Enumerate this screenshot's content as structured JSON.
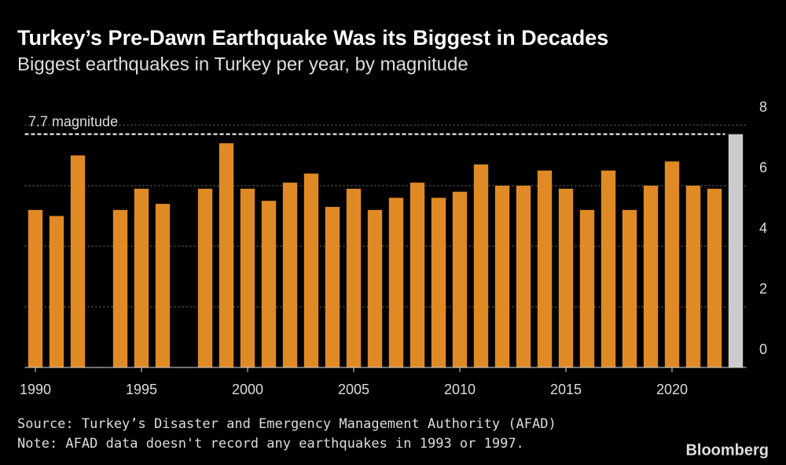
{
  "chart_data": {
    "type": "bar",
    "title": "Turkey’s Pre-Dawn Earthquake Was its Biggest in Decades",
    "subtitle": "Biggest earthquakes in Turkey per year, by magnitude",
    "x": [
      1990,
      1991,
      1992,
      1993,
      1994,
      1995,
      1996,
      1997,
      1998,
      1999,
      2000,
      2001,
      2002,
      2003,
      2004,
      2005,
      2006,
      2007,
      2008,
      2009,
      2010,
      2011,
      2012,
      2013,
      2014,
      2015,
      2016,
      2017,
      2018,
      2019,
      2020,
      2021,
      2022,
      2023
    ],
    "values": [
      5.2,
      5.0,
      7.0,
      null,
      5.2,
      5.9,
      5.4,
      null,
      5.9,
      7.4,
      5.9,
      5.5,
      6.1,
      6.4,
      5.3,
      5.9,
      5.2,
      5.6,
      6.1,
      5.6,
      5.8,
      6.7,
      6.0,
      6.0,
      6.5,
      5.9,
      5.2,
      6.5,
      5.2,
      6.0,
      6.8,
      6.0,
      5.9,
      7.7
    ],
    "colors": [
      "#e08a25",
      "#e08a25",
      "#e08a25",
      "#e08a25",
      "#e08a25",
      "#e08a25",
      "#e08a25",
      "#e08a25",
      "#e08a25",
      "#e08a25",
      "#e08a25",
      "#e08a25",
      "#e08a25",
      "#e08a25",
      "#e08a25",
      "#e08a25",
      "#e08a25",
      "#e08a25",
      "#e08a25",
      "#e08a25",
      "#e08a25",
      "#e08a25",
      "#e08a25",
      "#e08a25",
      "#e08a25",
      "#e08a25",
      "#e08a25",
      "#e08a25",
      "#e08a25",
      "#e08a25",
      "#e08a25",
      "#e08a25",
      "#e08a25",
      "#cccccc"
    ],
    "xlim": [
      1989.5,
      2023.5
    ],
    "xticks": [
      1990,
      1995,
      2000,
      2005,
      2010,
      2015,
      2020
    ],
    "ylim": [
      0,
      8
    ],
    "yticks": [
      0,
      2,
      4,
      6,
      8
    ],
    "grid": true,
    "reference_line": {
      "value": 7.7,
      "label": "7.7 magnitude"
    },
    "source": "Source: Turkey’s Disaster and Emergency Management Authority (AFAD)",
    "note": "Note: AFAD data doesn't record any earthquakes in 1993 or 1997.",
    "brand": "Bloomberg"
  }
}
